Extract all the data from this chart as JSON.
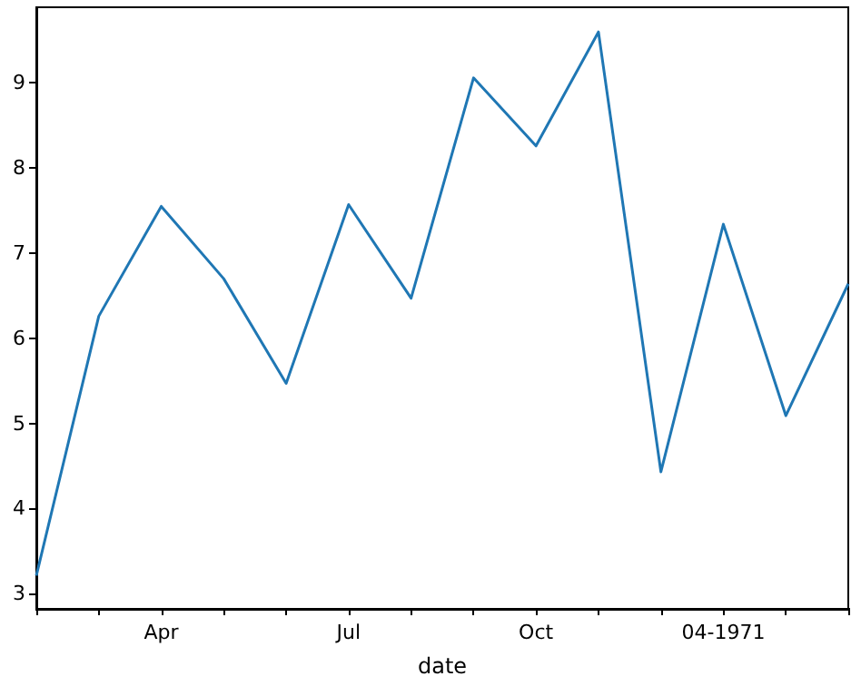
{
  "chart_data": {
    "type": "line",
    "xlabel": "date",
    "categories": [
      null,
      null,
      "Apr",
      null,
      null,
      "Jul",
      null,
      null,
      "Oct",
      null,
      null,
      "04-1971",
      null,
      null
    ],
    "series": [
      {
        "color": "#1f77b4",
        "values": [
          3.21,
          6.26,
          7.55,
          6.7,
          5.47,
          7.57,
          6.47,
          9.06,
          8.26,
          9.6,
          4.43,
          7.34,
          5.09,
          6.64
        ]
      }
    ],
    "ylim": [
      2.83,
      9.89
    ],
    "yticks": [
      3,
      4,
      5,
      6,
      7,
      8,
      9
    ],
    "grid": false,
    "marker": "none",
    "line_style": "solid"
  }
}
